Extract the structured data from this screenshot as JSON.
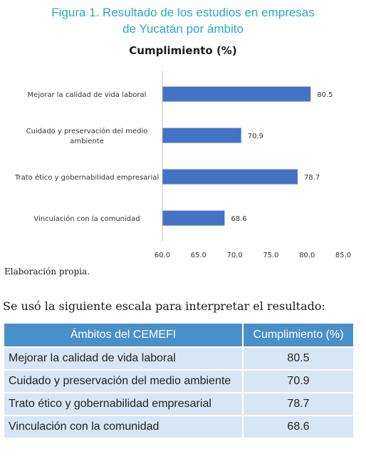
{
  "figure": {
    "title_line1": "Figura 1. Resultado de los estudios en empresas",
    "title_line2": "de Yucatán por ámbito",
    "source": "Elaboración propia."
  },
  "chart_data": {
    "type": "bar",
    "orientation": "horizontal",
    "title": "Cumplimiento (%)",
    "categories": [
      [
        "Mejorar la calidad de vida laboral"
      ],
      [
        "Cuidado y preservación del medio",
        "ambiente"
      ],
      [
        "Trato ético y gobernabilidad empresarial"
      ],
      [
        "Vinculación con la comunidad"
      ]
    ],
    "values": [
      80.5,
      70.9,
      78.7,
      68.6
    ],
    "xlim": [
      60.0,
      85.0
    ],
    "xticks": [
      "60.0",
      "65.0",
      "70.0",
      "75.0",
      "80.0",
      "85.0"
    ],
    "bar_color": "#4472c4",
    "grid": false
  },
  "text": {
    "intro": "Se usó la siguiente escala para interpretar el resultado:"
  },
  "table": {
    "headers": [
      "Ámbitos del CEMEFI",
      "Cumplimiento (%)"
    ],
    "header_color": "#4a90c8",
    "row_color": "#d6e6f5",
    "rows": [
      [
        "Mejorar la calidad de vida laboral",
        "80.5"
      ],
      [
        "Cuidado y preservación del medio ambiente",
        "70.9"
      ],
      [
        "Trato ético y gobernabilidad empresarial",
        "78.7"
      ],
      [
        "Vinculación con la comunidad",
        "68.6"
      ]
    ]
  }
}
